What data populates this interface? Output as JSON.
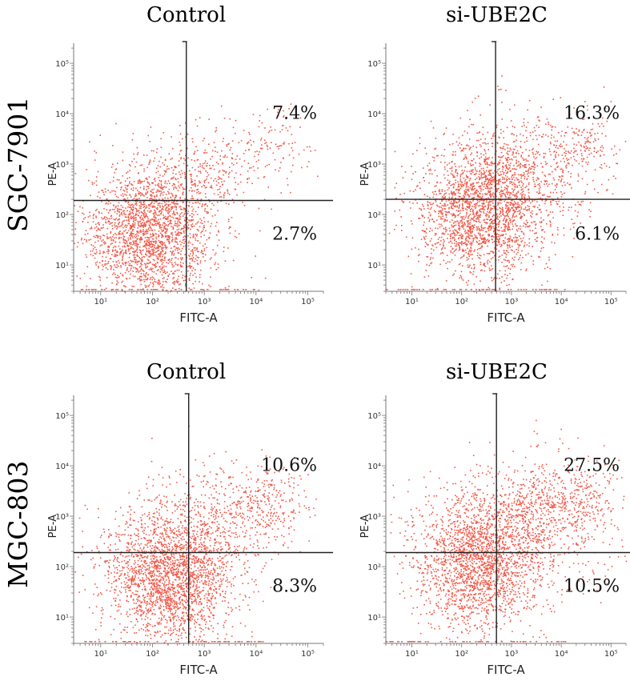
{
  "chart_data": [
    {
      "type": "scatter",
      "row_label": "SGC-7901",
      "title": "Control",
      "xlabel": "FITC-A",
      "ylabel": "PE-A",
      "xscale": "log",
      "yscale": "log",
      "xlim": [
        3,
        200000
      ],
      "ylim": [
        3,
        250000
      ],
      "x_tick_labels": [
        "10¹",
        "10²",
        "10³",
        "10⁴",
        "10⁵"
      ],
      "y_tick_labels": [
        "10¹",
        "10²",
        "10³",
        "10⁴",
        "10⁵"
      ],
      "quadrant_gate": {
        "x": 450,
        "y": 190
      },
      "quadrant_percentages": {
        "upper_right": "7.4%",
        "lower_right": "2.7%"
      },
      "point_color": "#f15a4a",
      "clusters": [
        {
          "cx": 90,
          "cy": 45,
          "sx": 0.28,
          "sy": 0.3,
          "n": 2200
        },
        {
          "cx": 900,
          "cy": 600,
          "sx": 0.25,
          "sy": 0.22,
          "n": 260
        },
        {
          "cx": 15000,
          "cy": 2200,
          "sx": 0.22,
          "sy": 0.18,
          "n": 140
        }
      ]
    },
    {
      "type": "scatter",
      "row_label": "SGC-7901",
      "title": "si-UBE2C",
      "xlabel": "FITC-A",
      "ylabel": "PE-A",
      "xscale": "log",
      "yscale": "log",
      "xlim": [
        3,
        200000
      ],
      "ylim": [
        3,
        250000
      ],
      "x_tick_labels": [
        "10¹",
        "10²",
        "10³",
        "10⁴",
        "10⁵"
      ],
      "y_tick_labels": [
        "10¹",
        "10²",
        "10³",
        "10⁴",
        "10⁵"
      ],
      "quadrant_gate": {
        "x": 480,
        "y": 200
      },
      "quadrant_percentages": {
        "upper_right": "16.3%",
        "lower_right": "6.1%"
      },
      "point_color": "#f15a4a",
      "clusters": [
        {
          "cx": 250,
          "cy": 120,
          "sx": 0.3,
          "sy": 0.3,
          "n": 2100
        },
        {
          "cx": 1500,
          "cy": 700,
          "sx": 0.35,
          "sy": 0.28,
          "n": 520
        },
        {
          "cx": 25000,
          "cy": 2600,
          "sx": 0.18,
          "sy": 0.15,
          "n": 160
        }
      ]
    },
    {
      "type": "scatter",
      "row_label": "MGC-803",
      "title": "Control",
      "xlabel": "FITC-A",
      "ylabel": "PE-A",
      "xscale": "log",
      "yscale": "log",
      "xlim": [
        3,
        200000
      ],
      "ylim": [
        3,
        250000
      ],
      "x_tick_labels": [
        "10¹",
        "10²",
        "10³",
        "10⁴",
        "10⁵"
      ],
      "y_tick_labels": [
        "10¹",
        "10²",
        "10³",
        "10⁴",
        "10⁵"
      ],
      "quadrant_gate": {
        "x": 500,
        "y": 190
      },
      "quadrant_percentages": {
        "upper_right": "10.6%",
        "lower_right": "8.3%"
      },
      "point_color": "#f15a4a",
      "clusters": [
        {
          "cx": 200,
          "cy": 65,
          "sx": 0.28,
          "sy": 0.3,
          "n": 2300
        },
        {
          "cx": 1800,
          "cy": 900,
          "sx": 0.35,
          "sy": 0.25,
          "n": 450
        },
        {
          "cx": 15000,
          "cy": 2200,
          "sx": 0.22,
          "sy": 0.15,
          "n": 220
        }
      ]
    },
    {
      "type": "scatter",
      "row_label": "MGC-803",
      "title": "si-UBE2C",
      "xlabel": "FITC-A",
      "ylabel": "PE-A",
      "xscale": "log",
      "yscale": "log",
      "xlim": [
        3,
        200000
      ],
      "ylim": [
        3,
        250000
      ],
      "x_tick_labels": [
        "10¹",
        "10²",
        "10³",
        "10⁴",
        "10⁵"
      ],
      "y_tick_labels": [
        "10¹",
        "10²",
        "10³",
        "10⁴",
        "10⁵"
      ],
      "quadrant_gate": {
        "x": 500,
        "y": 190
      },
      "quadrant_percentages": {
        "upper_right": "27.5%",
        "lower_right": "10.5%"
      },
      "point_color": "#f15a4a",
      "clusters": [
        {
          "cx": 200,
          "cy": 110,
          "sx": 0.3,
          "sy": 0.3,
          "n": 1900
        },
        {
          "cx": 1800,
          "cy": 700,
          "sx": 0.4,
          "sy": 0.3,
          "n": 900
        },
        {
          "cx": 15000,
          "cy": 2000,
          "sx": 0.25,
          "sy": 0.18,
          "n": 300
        }
      ]
    }
  ]
}
